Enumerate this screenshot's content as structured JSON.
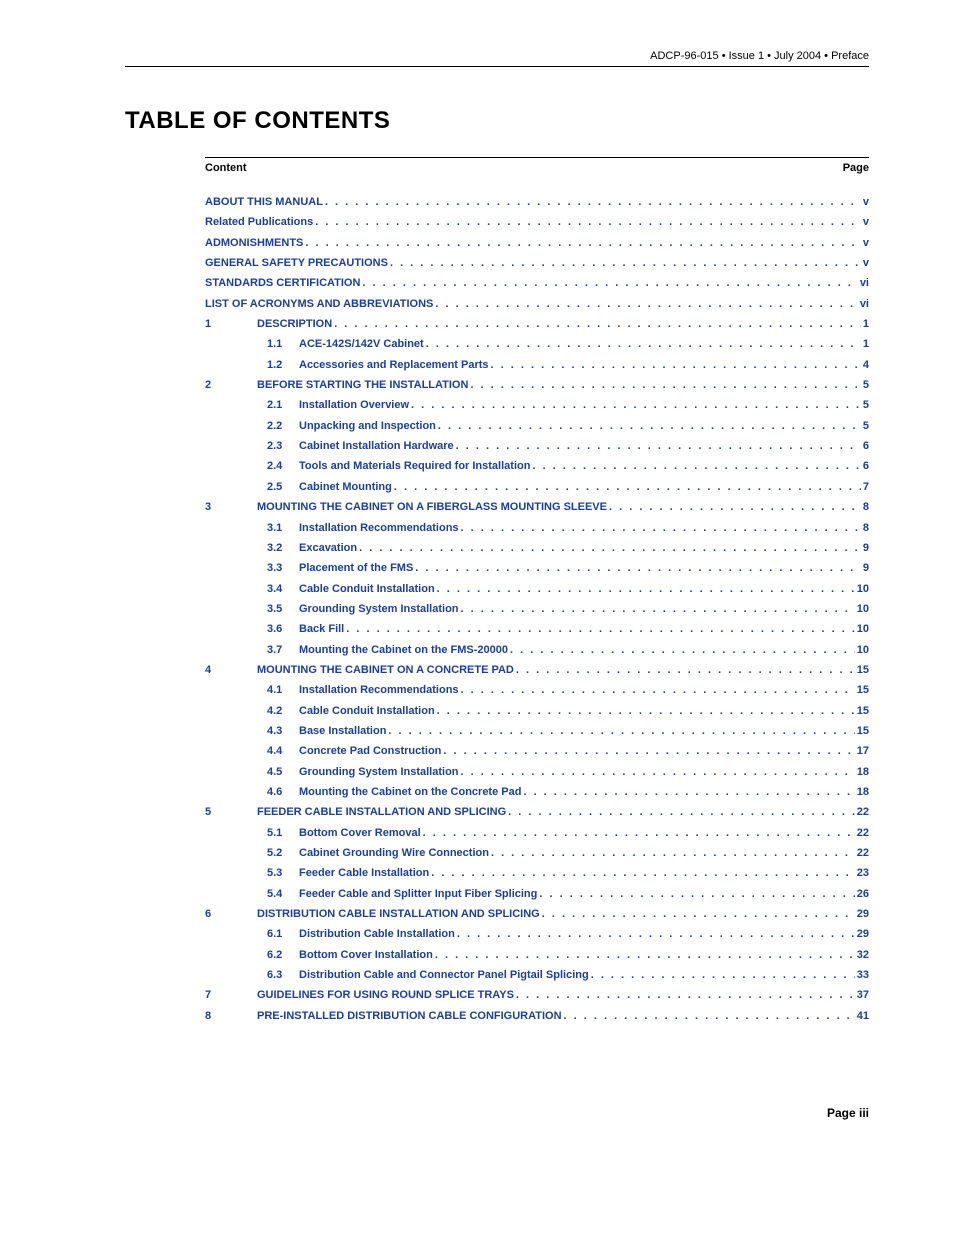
{
  "header": "ADCP-96-015 • Issue 1 • July 2004 • Preface",
  "title": "TABLE OF CONTENTS",
  "toc_header": {
    "left": "Content",
    "right": "Page"
  },
  "link_color": "#1a3f9c",
  "entries": [
    {
      "level": 0,
      "title": "ABOUT THIS MANUAL",
      "page": "v"
    },
    {
      "level": 0,
      "title": "Related Publications",
      "page": "v"
    },
    {
      "level": 0,
      "title": "ADMONISHMENTS",
      "page": "v"
    },
    {
      "level": 0,
      "title": "GENERAL SAFETY PRECAUTIONS",
      "page": "v"
    },
    {
      "level": 0,
      "title": "STANDARDS CERTIFICATION",
      "page": "vi"
    },
    {
      "level": 0,
      "title": "LIST OF ACRONYMS AND ABBREVIATIONS",
      "page": "vi"
    },
    {
      "level": 1,
      "num": "1",
      "title": "DESCRIPTION",
      "page": "1"
    },
    {
      "level": 2,
      "num": "1.1",
      "title": "ACE-142S/142V Cabinet",
      "page": "1"
    },
    {
      "level": 2,
      "num": "1.2",
      "title": "Accessories and Replacement Parts",
      "page": "4"
    },
    {
      "level": 1,
      "num": "2",
      "title": "BEFORE STARTING THE INSTALLATION",
      "page": "5"
    },
    {
      "level": 2,
      "num": "2.1",
      "title": "Installation Overview",
      "page": "5"
    },
    {
      "level": 2,
      "num": "2.2",
      "title": "Unpacking and Inspection",
      "page": "5"
    },
    {
      "level": 2,
      "num": "2.3",
      "title": "Cabinet Installation Hardware",
      "page": "6"
    },
    {
      "level": 2,
      "num": "2.4",
      "title": "Tools and Materials Required for Installation",
      "page": "6"
    },
    {
      "level": 2,
      "num": "2.5",
      "title": "Cabinet Mounting",
      "page": "7"
    },
    {
      "level": 1,
      "num": "3",
      "title": "MOUNTING THE CABINET ON A FIBERGLASS MOUNTING SLEEVE",
      "page": "8"
    },
    {
      "level": 2,
      "num": "3.1",
      "title": "Installation Recommendations",
      "page": "8"
    },
    {
      "level": 2,
      "num": "3.2",
      "title": "Excavation",
      "page": "9"
    },
    {
      "level": 2,
      "num": "3.3",
      "title": "Placement of the FMS",
      "page": "9"
    },
    {
      "level": 2,
      "num": "3.4",
      "title": "Cable Conduit Installation",
      "page": "10"
    },
    {
      "level": 2,
      "num": "3.5",
      "title": "Grounding System Installation",
      "page": "10"
    },
    {
      "level": 2,
      "num": "3.6",
      "title": "Back Fill",
      "page": "10"
    },
    {
      "level": 2,
      "num": "3.7",
      "title": "Mounting the Cabinet on the FMS-20000",
      "page": "10"
    },
    {
      "level": 1,
      "num": "4",
      "title": "MOUNTING THE CABINET ON A CONCRETE PAD",
      "page": "15"
    },
    {
      "level": 2,
      "num": "4.1",
      "title": "Installation Recommendations",
      "page": "15"
    },
    {
      "level": 2,
      "num": "4.2",
      "title": "Cable Conduit Installation",
      "page": "15"
    },
    {
      "level": 2,
      "num": "4.3",
      "title": "Base Installation",
      "page": "15"
    },
    {
      "level": 2,
      "num": "4.4",
      "title": "Concrete Pad Construction",
      "page": "17"
    },
    {
      "level": 2,
      "num": "4.5",
      "title": "Grounding System Installation",
      "page": "18"
    },
    {
      "level": 2,
      "num": "4.6",
      "title": "Mounting the Cabinet on the Concrete Pad",
      "page": "18"
    },
    {
      "level": 1,
      "num": "5",
      "title": "FEEDER CABLE INSTALLATION AND SPLICING",
      "page": "22"
    },
    {
      "level": 2,
      "num": "5.1",
      "title": "Bottom Cover Removal",
      "page": "22"
    },
    {
      "level": 2,
      "num": "5.2",
      "title": "Cabinet Grounding Wire Connection",
      "page": "22"
    },
    {
      "level": 2,
      "num": "5.3",
      "title": "Feeder Cable Installation",
      "page": "23"
    },
    {
      "level": 2,
      "num": "5.4",
      "title": "Feeder Cable and Splitter Input Fiber Splicing",
      "page": "26"
    },
    {
      "level": 1,
      "num": "6",
      "title": "DISTRIBUTION CABLE INSTALLATION AND SPLICING",
      "page": "29"
    },
    {
      "level": 2,
      "num": "6.1",
      "title": "Distribution Cable Installation",
      "page": "29"
    },
    {
      "level": 2,
      "num": "6.2",
      "title": "Bottom Cover Installation",
      "page": "32"
    },
    {
      "level": 2,
      "num": "6.3",
      "title": "Distribution Cable and Connector Panel Pigtail Splicing",
      "page": "33"
    },
    {
      "level": 1,
      "num": "7",
      "title": "GUIDELINES FOR USING ROUND SPLICE TRAYS",
      "page": "37"
    },
    {
      "level": 1,
      "num": "8",
      "title": "PRE-INSTALLED DISTRIBUTION CABLE CONFIGURATION",
      "page": "41"
    }
  ],
  "footer": "Page iii"
}
